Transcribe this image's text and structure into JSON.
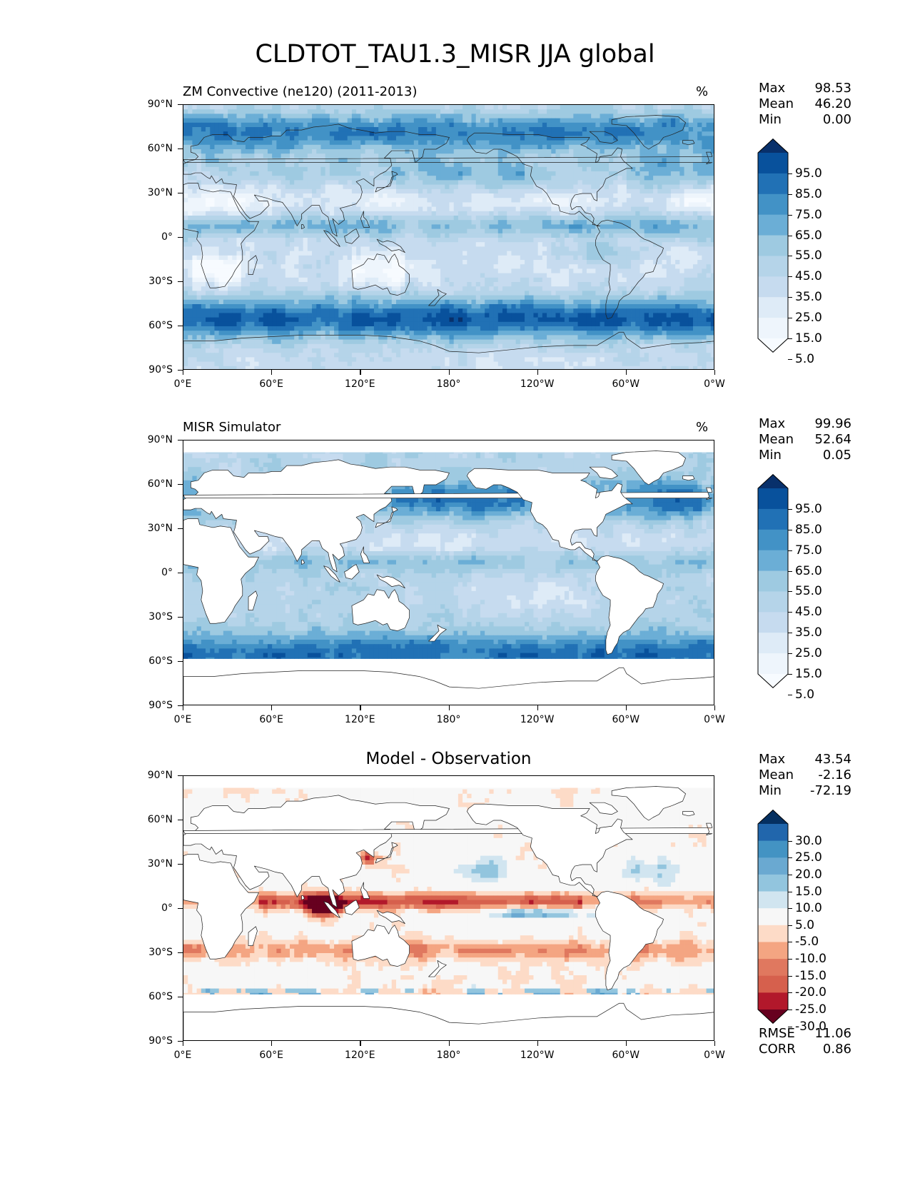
{
  "figure": {
    "title": "CLDTOT_TAU1.3_MISR JJA global"
  },
  "axes": {
    "lat_labels": [
      "90°N",
      "60°N",
      "30°N",
      "0°",
      "30°S",
      "60°S",
      "90°S"
    ],
    "lon_labels": [
      "0°E",
      "60°E",
      "120°E",
      "180°",
      "120°W",
      "60°W",
      "0°W"
    ]
  },
  "panels": [
    {
      "title_left": "ZM Convective (ne120) (2011-2013)",
      "title_right": "%",
      "title_center": "",
      "stats": [
        {
          "label": "Max",
          "value": "98.53"
        },
        {
          "label": "Mean",
          "value": "46.20"
        },
        {
          "label": "Min",
          "value": "0.00"
        }
      ],
      "colorbar": {
        "labels": [
          "95.0",
          "85.0",
          "75.0",
          "65.0",
          "55.0",
          "45.0",
          "35.0",
          "25.0",
          "15.0",
          "5.0"
        ],
        "colors": [
          "#08306b",
          "#08519c",
          "#2171b5",
          "#4292c6",
          "#6baed6",
          "#9ecae1",
          "#b5d4e9",
          "#c6dbef",
          "#deebf7",
          "#eef5fc",
          "#f7fbff"
        ]
      },
      "map_style": "model"
    },
    {
      "title_left": "MISR Simulator",
      "title_right": "%",
      "title_center": "",
      "stats": [
        {
          "label": "Max",
          "value": "99.96"
        },
        {
          "label": "Mean",
          "value": "52.64"
        },
        {
          "label": "Min",
          "value": "0.05"
        }
      ],
      "colorbar": {
        "labels": [
          "95.0",
          "85.0",
          "75.0",
          "65.0",
          "55.0",
          "45.0",
          "35.0",
          "25.0",
          "15.0",
          "5.0"
        ],
        "colors": [
          "#08306b",
          "#08519c",
          "#2171b5",
          "#4292c6",
          "#6baed6",
          "#9ecae1",
          "#b5d4e9",
          "#c6dbef",
          "#deebf7",
          "#eef5fc",
          "#f7fbff"
        ]
      },
      "map_style": "obs"
    },
    {
      "title_left": "",
      "title_right": "",
      "title_center": "Model - Observation",
      "stats": [
        {
          "label": "Max",
          "value": "43.54"
        },
        {
          "label": "Mean",
          "value": "-2.16"
        },
        {
          "label": "Min",
          "value": "-72.19"
        }
      ],
      "colorbar": {
        "labels": [
          "30.0",
          "25.0",
          "20.0",
          "15.0",
          "10.0",
          "5.0",
          "-5.0",
          "-10.0",
          "-15.0",
          "-20.0",
          "-25.0",
          "-30.0"
        ],
        "colors": [
          "#053061",
          "#2166ac",
          "#4393c3",
          "#6aa9d1",
          "#92c5de",
          "#d1e5f0",
          "#f7f7f7",
          "#fddbc7",
          "#f4a582",
          "#e0785f",
          "#d6604d",
          "#b2182b",
          "#67001f"
        ]
      },
      "map_style": "diff"
    }
  ],
  "metrics": [
    {
      "label": "RMSE",
      "value": "11.06"
    },
    {
      "label": "CORR",
      "value": "0.86"
    }
  ]
}
